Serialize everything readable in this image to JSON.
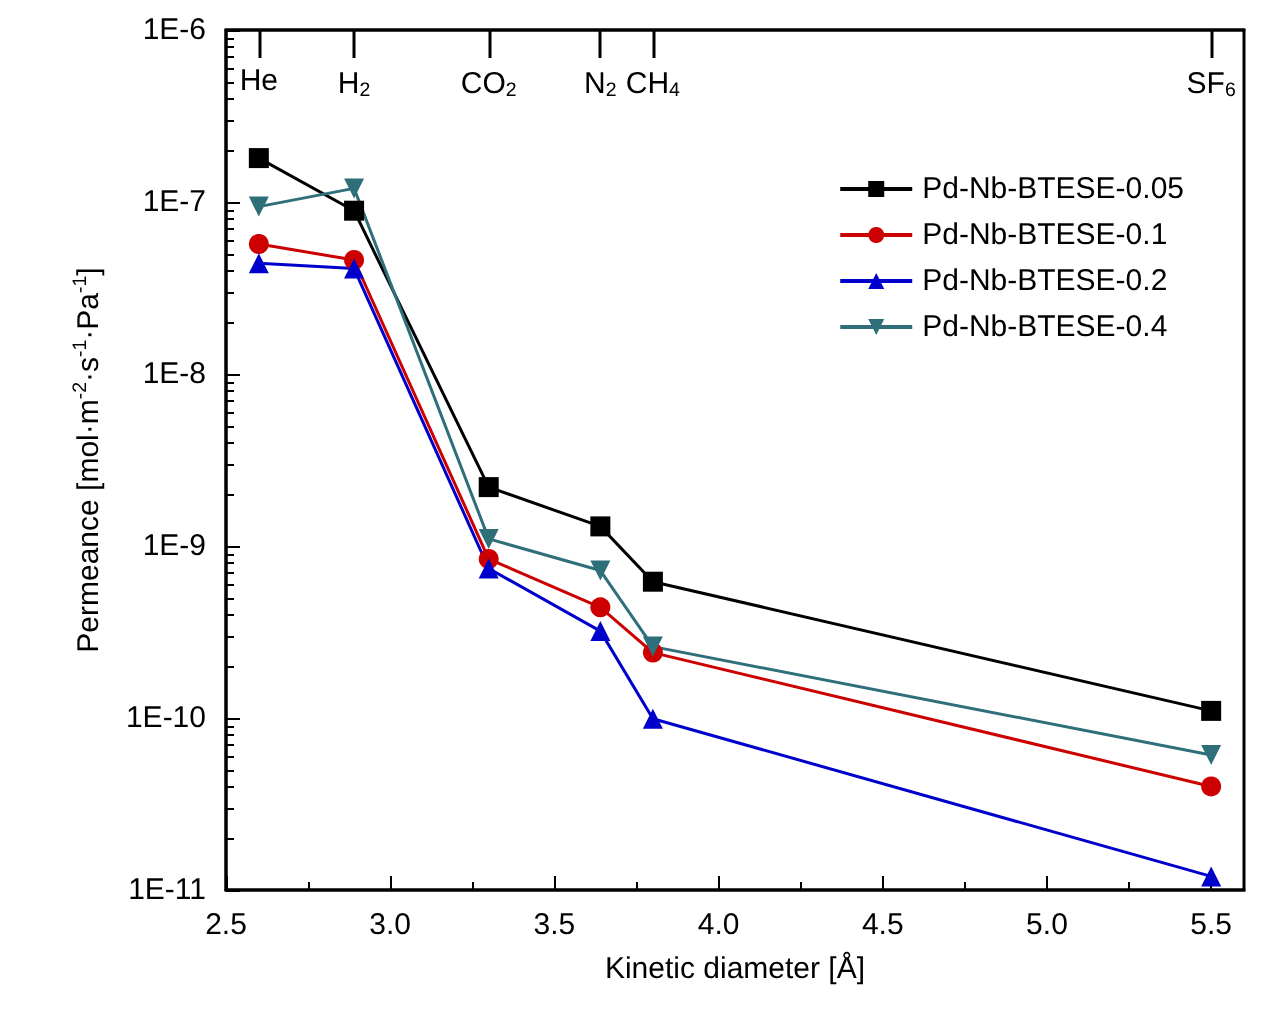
{
  "chart_data": {
    "type": "line",
    "xlabel": "Kinetic diameter [Å]",
    "ylabel": "Permeance [mol·m$^{-2}$·s$^{-1}$·Pa$^{-1}$]",
    "x": [
      2.6,
      2.89,
      3.3,
      3.64,
      3.8,
      5.5
    ],
    "series": [
      {
        "name": "Pd-Nb-BTESE-0.05",
        "color": "#000000",
        "marker": "square",
        "values": [
          1.8e-07,
          8.9e-08,
          2.2e-09,
          1.3e-09,
          6.2e-10,
          1.1e-10
        ]
      },
      {
        "name": "Pd-Nb-BTESE-0.1",
        "color": "#cc0000",
        "marker": "circle",
        "values": [
          5.7e-08,
          4.6e-08,
          8.4e-10,
          4.4e-10,
          2.4e-10,
          4e-11
        ]
      },
      {
        "name": "Pd-Nb-BTESE-0.2",
        "color": "#0000cc",
        "marker": "triangle",
        "values": [
          4.4e-08,
          4.1e-08,
          7.4e-10,
          3.2e-10,
          9.9e-11,
          1.2e-11
        ]
      },
      {
        "name": "Pd-Nb-BTESE-0.4",
        "color": "#2f6f7a",
        "marker": "triangle-down",
        "values": [
          9.4e-08,
          1.2e-07,
          1.1e-09,
          7.2e-10,
          2.6e-10,
          6.1e-11
        ]
      }
    ],
    "log": "y",
    "xlim": [
      2.5,
      5.6
    ],
    "xticks": [
      2.5,
      {
        "value": 3,
        "label": "3.0"
      },
      3.5,
      {
        "value": 4,
        "label": "4.0"
      },
      4.5,
      {
        "value": 5,
        "label": "5.0"
      },
      5.5
    ],
    "annotations": [
      {
        "text": "He",
        "x": 2.6
      },
      {
        "text": "H$_{2}$",
        "x": 2.89
      },
      {
        "text": "CO$_{2}$",
        "x": 3.3
      },
      {
        "text": "N$_{2}$",
        "x": 3.64
      },
      {
        "text": "CH$_{4}$",
        "x": 3.8
      },
      {
        "text": "SF$_{6}$",
        "x": 5.5
      }
    ],
    "ylim": [
      1e-11,
      1e-06
    ],
    "yticks": [
      {
        "value": 1e-11,
        "label": "1E-11"
      },
      {
        "value": 1e-10,
        "label": "1E-10"
      },
      {
        "value": 1e-09,
        "label": "1E-9"
      },
      {
        "value": 1e-08,
        "label": "1E-8"
      },
      {
        "value": 1e-07,
        "label": "1E-7"
      },
      {
        "value": 1e-06,
        "label": "1E-6"
      }
    ],
    "legend": "top right",
    "grid": false,
    "line_style": "solid"
  }
}
